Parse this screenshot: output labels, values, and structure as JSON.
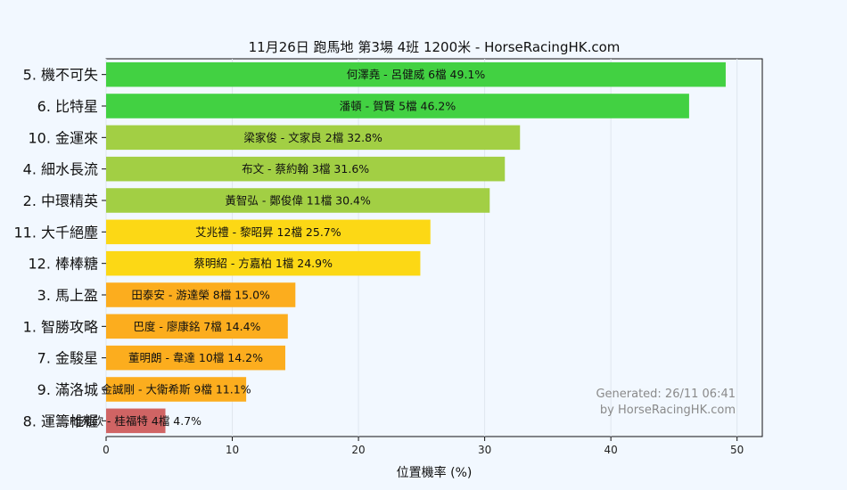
{
  "chart_data": {
    "type": "bar",
    "orientation": "horizontal",
    "title": "11月26日  跑馬地  第3場  4班  1200米 - HorseRacingHK.com",
    "xlabel": "位置機率 (%)",
    "ylabel": "",
    "xlim": [
      0,
      52
    ],
    "xticks": [
      0,
      10,
      20,
      30,
      40,
      50
    ],
    "grid": "vertical",
    "categories": [
      "5. 機不可失",
      "6. 比特星",
      "10. 金運來",
      "4. 細水長流",
      "2. 中環精英",
      "11. 大千絕塵",
      "12. 棒棒糖",
      "3. 馬上盈",
      "1. 智勝攻略",
      "7. 金駿星",
      "9. 滿洛城",
      "8. 運籌帷幄"
    ],
    "values": [
      49.1,
      46.2,
      32.8,
      31.6,
      30.4,
      25.7,
      24.9,
      15.0,
      14.4,
      14.2,
      11.1,
      4.7
    ],
    "bar_labels": [
      "何澤堯 - 呂健威 6檔  49.1%",
      "潘頓 - 賀賢 5檔  46.2%",
      "梁家俊 - 文家良 2檔  32.8%",
      "布文 - 蔡約翰 3檔  31.6%",
      "黃智弘 - 鄭俊偉 11檔  30.4%",
      "艾兆禮 - 黎昭昇 12檔  25.7%",
      "蔡明紹 - 方嘉柏 1檔  24.9%",
      "田泰安 - 游達榮 8檔  15.0%",
      "巴度 - 廖康銘 7檔  14.4%",
      "董明朗 - 韋達 10檔  14.2%",
      "金誠剛 - 大衛希斯 9檔  11.1%",
      "杜苑欣 - 桂福特 4檔  4.7%"
    ],
    "colors": [
      "#42d142",
      "#42d142",
      "#a2cf44",
      "#a2cf44",
      "#a2cf44",
      "#fcd815",
      "#fcd815",
      "#fcad1e",
      "#fcad1e",
      "#fcad1e",
      "#fcad1e",
      "#d06464"
    ]
  },
  "watermark": {
    "line1": "Generated: 26/11 06:41",
    "line2": "by HorseRacingHK.com"
  }
}
